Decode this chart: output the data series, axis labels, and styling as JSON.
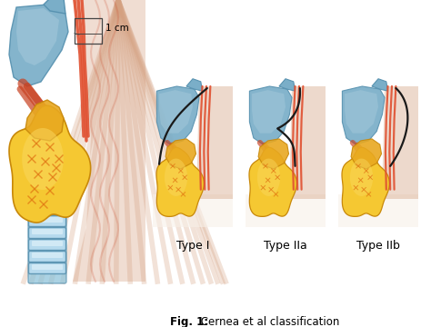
{
  "background_color": "#ffffff",
  "figure_width": 4.74,
  "figure_height": 3.6,
  "dpi": 100,
  "caption_bold": "Fig. 1:",
  "caption_normal": " Cernea et al classification",
  "caption_fontsize": 8.5,
  "label_type1": "Type I",
  "label_type2a": "Type IIa",
  "label_type2b": "Type IIb",
  "label_fontsize": 9,
  "measurement_label": "1 cm",
  "colors": {
    "thyroid_yellow_bright": "#F5C832",
    "thyroid_yellow_mid": "#E8A820",
    "thyroid_yellow_dark": "#C8880A",
    "thyroid_orange": "#E07010",
    "cartilage_blue_light": "#A8CBDC",
    "cartilage_blue_mid": "#7AAEC8",
    "cartilage_blue_dark": "#5892B0",
    "muscle_red_bright": "#E05030",
    "muscle_red_mid": "#C84020",
    "muscle_skin": "#D4A080",
    "trachea_blue": "#88C0D8",
    "trachea_ring": "#5892B0",
    "nerve_black": "#1a1a1a",
    "box_stroke": "#444444",
    "white": "#ffffff",
    "bg_fade": "#F8F0E8"
  }
}
